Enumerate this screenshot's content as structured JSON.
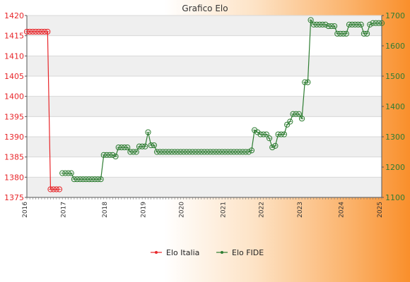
{
  "chart_data": {
    "type": "line",
    "title": "Grafico Elo",
    "xlabel": "",
    "ylabel": "",
    "y_left_lim": [
      1375,
      1420
    ],
    "y_left_ticks": [
      1375,
      1380,
      1385,
      1390,
      1395,
      1400,
      1405,
      1410,
      1415,
      1420
    ],
    "y_right_lim": [
      1100,
      1700
    ],
    "y_right_ticks": [
      1100,
      1200,
      1300,
      1400,
      1500,
      1600,
      1700
    ],
    "grid": true,
    "legend_position": "bottom",
    "x_tick_labels_visible": [
      "2016",
      "2017",
      "2018",
      "2019",
      "2020",
      "2021",
      "2022",
      "2023",
      "2024",
      "2025"
    ],
    "series": [
      {
        "name": "Elo Italia",
        "axis": "left",
        "color": "#e8262a",
        "values": [
          1416,
          1416,
          1416,
          1416,
          1416,
          1416,
          1416,
          1416,
          1377,
          1377,
          1377,
          1377
        ]
      },
      {
        "name": "Elo FIDE",
        "axis": "right",
        "color": "#2e7d32",
        "values": [
          null,
          null,
          null,
          null,
          null,
          null,
          null,
          null,
          null,
          null,
          null,
          null,
          1180,
          1180,
          1180,
          1180,
          1160,
          1160,
          1160,
          1160,
          1160,
          1160,
          1160,
          1160,
          1160,
          1160,
          1240,
          1240,
          1240,
          1240,
          1235,
          1265,
          1265,
          1265,
          1265,
          1250,
          1250,
          1250,
          1268,
          1268,
          1268,
          1315,
          1272,
          1272,
          1250,
          1250,
          1250,
          1250,
          1250,
          1250,
          1250,
          1250,
          1250,
          1250,
          1250,
          1250,
          1250,
          1250,
          1250,
          1250,
          1250,
          1250,
          1250,
          1250,
          1250,
          1250,
          1250,
          1250,
          1250,
          1250,
          1250,
          1250,
          1250,
          1250,
          1250,
          1250,
          1255,
          1322,
          1315,
          1308,
          1308,
          1308,
          1295,
          1265,
          1270,
          1308,
          1308,
          1308,
          1340,
          1350,
          1375,
          1375,
          1375,
          1360,
          1480,
          1480,
          1685,
          1670,
          1670,
          1670,
          1670,
          1670,
          1665,
          1665,
          1665,
          1640,
          1640,
          1640,
          1640,
          1670,
          1670,
          1670,
          1670,
          1670,
          1640,
          1640,
          1670,
          1675,
          1675,
          1675,
          1675
        ]
      }
    ]
  }
}
